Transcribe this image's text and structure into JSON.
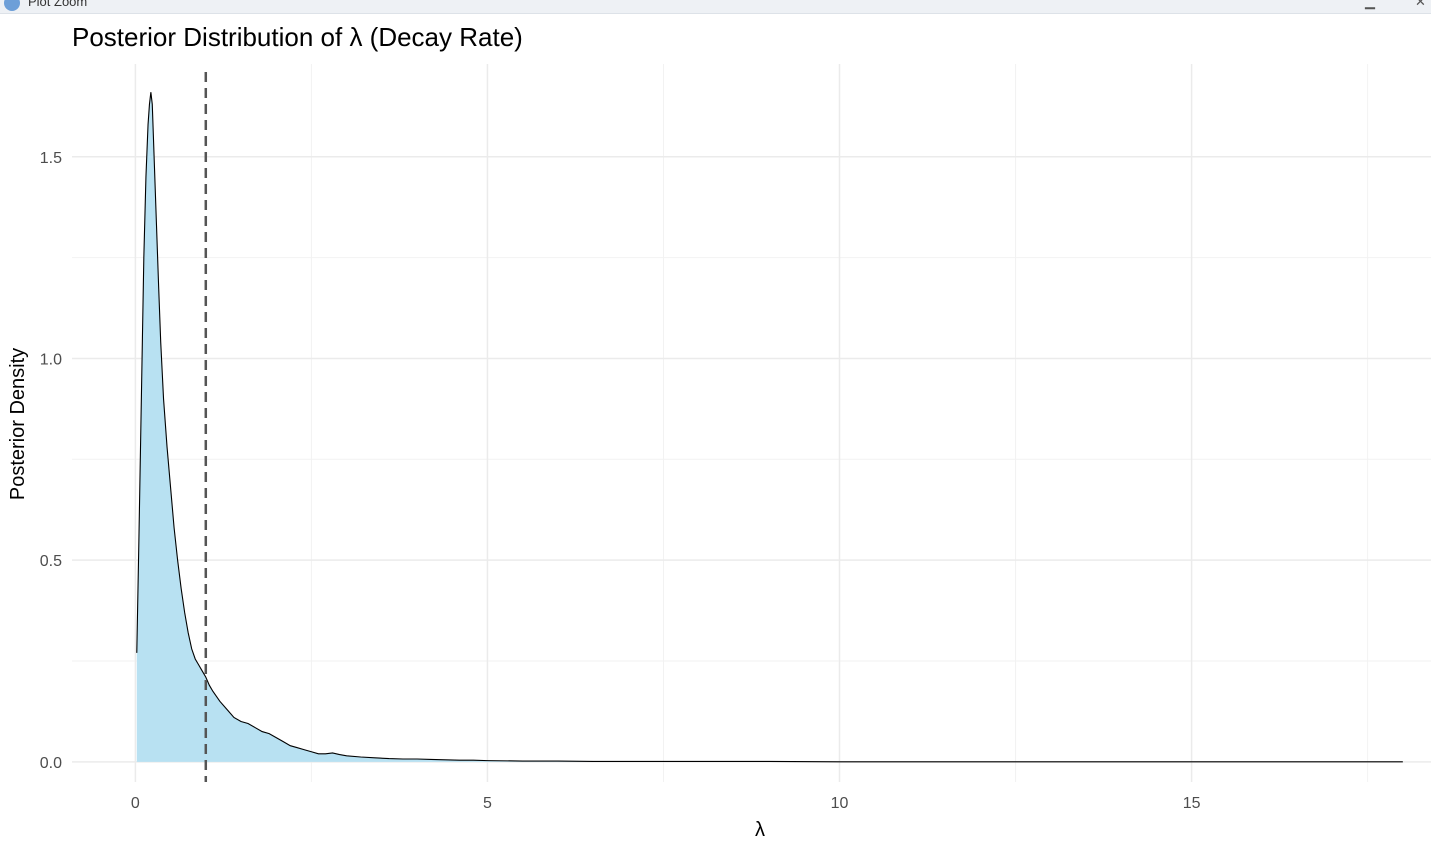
{
  "window": {
    "title": "Plot Zoom",
    "minimize_icon": "minimize-icon",
    "close_icon": "close-icon"
  },
  "chart_data": {
    "type": "area",
    "title": "Posterior Distribution of λ (Decay Rate)",
    "xlabel": "λ",
    "ylabel": "Posterior Density",
    "xlim": [
      -0.9,
      18.4
    ],
    "ylim": [
      -0.05,
      1.73
    ],
    "xticks": [
      0,
      5,
      10,
      15
    ],
    "yticks": [
      0.0,
      0.5,
      1.0,
      1.5
    ],
    "grid": true,
    "fill_color": "#b8e1f2",
    "line_color": "#000000",
    "reference_line": {
      "x": 1.0,
      "style": "dashed",
      "color": "#555555"
    },
    "series": [
      {
        "x": [
          0.02,
          0.05,
          0.08,
          0.1,
          0.12,
          0.15,
          0.18,
          0.2,
          0.22,
          0.24,
          0.25,
          0.27,
          0.3,
          0.33,
          0.36,
          0.4,
          0.45,
          0.5,
          0.55,
          0.6,
          0.65,
          0.7,
          0.75,
          0.8,
          0.85,
          0.9,
          0.95,
          1.0,
          1.05,
          1.1,
          1.2,
          1.3,
          1.4,
          1.5,
          1.6,
          1.7,
          1.8,
          1.9,
          2.0,
          2.1,
          2.2,
          2.3,
          2.4,
          2.5,
          2.6,
          2.7,
          2.8,
          2.9,
          3.0,
          3.2,
          3.4,
          3.6,
          3.8,
          4.0,
          4.2,
          4.4,
          4.6,
          4.8,
          5.0,
          5.5,
          6.0,
          6.5,
          7.0,
          7.5,
          8.0,
          8.5,
          9.0,
          10.0,
          11.0,
          12.0,
          13.0,
          14.0,
          15.0,
          16.0,
          17.0,
          18.0
        ],
        "y": [
          0.27,
          0.55,
          0.85,
          1.05,
          1.25,
          1.45,
          1.58,
          1.63,
          1.66,
          1.63,
          1.58,
          1.48,
          1.33,
          1.18,
          1.04,
          0.9,
          0.78,
          0.68,
          0.58,
          0.5,
          0.43,
          0.37,
          0.32,
          0.28,
          0.255,
          0.24,
          0.225,
          0.21,
          0.19,
          0.175,
          0.15,
          0.13,
          0.11,
          0.1,
          0.095,
          0.085,
          0.075,
          0.07,
          0.06,
          0.05,
          0.04,
          0.035,
          0.03,
          0.025,
          0.02,
          0.02,
          0.022,
          0.018,
          0.015,
          0.012,
          0.01,
          0.008,
          0.007,
          0.007,
          0.006,
          0.005,
          0.004,
          0.004,
          0.003,
          0.002,
          0.002,
          0.001,
          0.001,
          0.001,
          0.001,
          0.001,
          0.001,
          0.0,
          0.0,
          0.0,
          0.0,
          0.0,
          0.0,
          0.0,
          0.0,
          0.0
        ]
      }
    ]
  }
}
